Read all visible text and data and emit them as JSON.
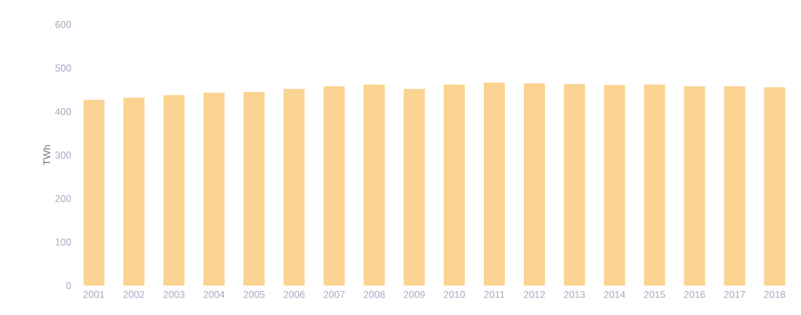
{
  "chart_data": {
    "type": "bar",
    "ylabel": "TWh",
    "categories": [
      "2001",
      "2002",
      "2003",
      "2004",
      "2005",
      "2006",
      "2007",
      "2008",
      "2009",
      "2010",
      "2011",
      "2012",
      "2013",
      "2014",
      "2015",
      "2016",
      "2017",
      "2018"
    ],
    "values": [
      427,
      432,
      438,
      443,
      445,
      452,
      458,
      462,
      452,
      462,
      467,
      465,
      463,
      461,
      462,
      458,
      458,
      456
    ],
    "color": "#fad390",
    "ylim": [
      0,
      600
    ],
    "yticks": [
      0,
      100,
      200,
      300,
      400,
      500,
      600
    ],
    "grid": false
  }
}
